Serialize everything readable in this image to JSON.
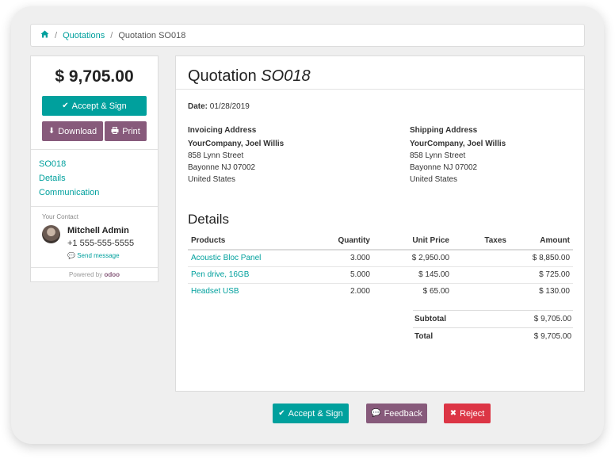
{
  "breadcrumb": {
    "home_icon": "home-icon",
    "separator": "/",
    "items": [
      "Quotations",
      "Quotation SO018"
    ]
  },
  "sidebar": {
    "amount": "$ 9,705.00",
    "accept_label": "Accept & Sign",
    "download_label": "Download",
    "print_label": "Print",
    "nav": [
      "SO018",
      "Details",
      "Communication"
    ],
    "contact_heading": "Your Contact",
    "contact_name": "Mitchell Admin",
    "contact_phone": "+1 555-555-5555",
    "send_message": "Send message",
    "powered_by": "Powered by",
    "powered_brand": "odoo"
  },
  "quotation": {
    "title_prefix": "Quotation",
    "title_ref": "SO018",
    "date_label": "Date:",
    "date_value": "01/28/2019",
    "invoicing": {
      "heading": "Invoicing Address",
      "name": "YourCompany, Joel Willis",
      "street": "858 Lynn Street",
      "city": "Bayonne NJ 07002",
      "country": "United States"
    },
    "shipping": {
      "heading": "Shipping Address",
      "name": "YourCompany, Joel Willis",
      "street": "858 Lynn Street",
      "city": "Bayonne NJ 07002",
      "country": "United States"
    },
    "details_heading": "Details",
    "columns": [
      "Products",
      "Quantity",
      "Unit Price",
      "Taxes",
      "Amount"
    ],
    "lines": [
      {
        "product": "Acoustic Bloc Panel",
        "quantity": "3.000",
        "unit_price": "$ 2,950.00",
        "taxes": "",
        "amount": "$ 8,850.00"
      },
      {
        "product": "Pen drive, 16GB",
        "quantity": "5.000",
        "unit_price": "$ 145.00",
        "taxes": "",
        "amount": "$ 725.00"
      },
      {
        "product": "Headset USB",
        "quantity": "2.000",
        "unit_price": "$ 65.00",
        "taxes": "",
        "amount": "$ 130.00"
      }
    ],
    "subtotal_label": "Subtotal",
    "subtotal_value": "$ 9,705.00",
    "total_label": "Total",
    "total_value": "$ 9,705.00"
  },
  "footer_actions": {
    "accept_label": "Accept & Sign",
    "feedback_label": "Feedback",
    "reject_label": "Reject"
  },
  "colors": {
    "accent_teal": "#00a09d",
    "purple": "#875a7b",
    "danger": "#dc3545"
  }
}
